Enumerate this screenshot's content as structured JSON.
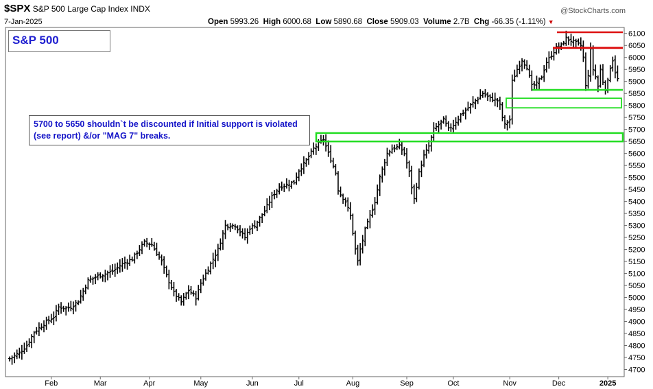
{
  "header": {
    "symbol": "$SPX",
    "name": "S&P 500 Large Cap Index",
    "exchange": "INDX",
    "brand": "@StockCharts.com",
    "date": "7-Jan-2025",
    "open_label": "Open",
    "open_value": "5993.26",
    "high_label": "High",
    "high_value": "6000.68",
    "low_label": "Low",
    "low_value": "5890.68",
    "close_label": "Close",
    "close_value": "5909.03",
    "volume_label": "Volume",
    "volume_value": "2.7B",
    "chg_label": "Chg",
    "chg_value": "-66.35 (-1.11%)"
  },
  "legend": {
    "label": "S&P 500"
  },
  "annotation": "5700 to 5650 shouldn`t be discounted if Initial support is violated (see report) &/or \"MAG 7\" breaks.",
  "colors": {
    "price_bars": "#000000",
    "support": "#22dd22",
    "resistance": "#dd1111",
    "text_blue": "#1414c8",
    "down_arrow": "#cc0000"
  },
  "chart_data": {
    "type": "ohlc",
    "title": "$SPX S&P 500 Large Cap Index INDX",
    "y_range": [
      4670,
      6125
    ],
    "y_ticks": [
      4700,
      4750,
      4800,
      4850,
      4900,
      4950,
      5000,
      5050,
      5100,
      5150,
      5200,
      5250,
      5300,
      5350,
      5400,
      5450,
      5500,
      5550,
      5600,
      5650,
      5700,
      5750,
      5800,
      5850,
      5900,
      5950,
      6000,
      6050,
      6100
    ],
    "x_labels": [
      {
        "label": "Feb",
        "day": 17
      },
      {
        "label": "Mar",
        "day": 37
      },
      {
        "label": "Apr",
        "day": 57
      },
      {
        "label": "May",
        "day": 78
      },
      {
        "label": "Jun",
        "day": 99
      },
      {
        "label": "Jul",
        "day": 118
      },
      {
        "label": "Aug",
        "day": 140
      },
      {
        "label": "Sep",
        "day": 162
      },
      {
        "label": "Oct",
        "day": 181
      },
      {
        "label": "Nov",
        "day": 204
      },
      {
        "label": "Dec",
        "day": 224
      },
      {
        "label": "2025",
        "day": 244
      }
    ],
    "x_span": [
      0,
      249
    ],
    "close_path": [
      [
        0,
        4745
      ],
      [
        4,
        4770
      ],
      [
        7,
        4800
      ],
      [
        10,
        4855
      ],
      [
        14,
        4890
      ],
      [
        18,
        4920
      ],
      [
        20,
        4960
      ],
      [
        23,
        4955
      ],
      [
        25,
        4960
      ],
      [
        28,
        4985
      ],
      [
        32,
        5070
      ],
      [
        36,
        5090
      ],
      [
        38,
        5095
      ],
      [
        42,
        5110
      ],
      [
        46,
        5140
      ],
      [
        50,
        5160
      ],
      [
        55,
        5230
      ],
      [
        58,
        5220
      ],
      [
        62,
        5150
      ],
      [
        64,
        5090
      ],
      [
        67,
        5020
      ],
      [
        70,
        4980
      ],
      [
        73,
        5030
      ],
      [
        76,
        5000
      ],
      [
        78,
        5060
      ],
      [
        82,
        5140
      ],
      [
        85,
        5200
      ],
      [
        88,
        5300
      ],
      [
        92,
        5300
      ],
      [
        96,
        5250
      ],
      [
        98,
        5290
      ],
      [
        100,
        5300
      ],
      [
        104,
        5360
      ],
      [
        107,
        5420
      ],
      [
        110,
        5460
      ],
      [
        113,
        5470
      ],
      [
        116,
        5480
      ],
      [
        118,
        5530
      ],
      [
        121,
        5570
      ],
      [
        124,
        5620
      ],
      [
        126,
        5640
      ],
      [
        128,
        5660
      ],
      [
        130,
        5600
      ],
      [
        131,
        5575
      ],
      [
        133,
        5520
      ],
      [
        134,
        5450
      ],
      [
        135,
        5430
      ],
      [
        137,
        5400
      ],
      [
        139,
        5340
      ],
      [
        141,
        5200
      ],
      [
        142,
        5150
      ],
      [
        143,
        5200
      ],
      [
        145,
        5280
      ],
      [
        147,
        5340
      ],
      [
        149,
        5400
      ],
      [
        151,
        5500
      ],
      [
        154,
        5600
      ],
      [
        156,
        5620
      ],
      [
        159,
        5630
      ],
      [
        161,
        5600
      ],
      [
        163,
        5520
      ],
      [
        164,
        5460
      ],
      [
        165,
        5410
      ],
      [
        167,
        5520
      ],
      [
        169,
        5590
      ],
      [
        171,
        5630
      ],
      [
        173,
        5700
      ],
      [
        175,
        5720
      ],
      [
        177,
        5740
      ],
      [
        179,
        5700
      ],
      [
        181,
        5720
      ],
      [
        184,
        5760
      ],
      [
        187,
        5790
      ],
      [
        190,
        5820
      ],
      [
        193,
        5850
      ],
      [
        196,
        5830
      ],
      [
        199,
        5820
      ],
      [
        200,
        5800
      ],
      [
        201,
        5750
      ],
      [
        202,
        5720
      ],
      [
        204,
        5740
      ],
      [
        205,
        5900
      ],
      [
        207,
        5950
      ],
      [
        209,
        5990
      ],
      [
        211,
        5960
      ],
      [
        213,
        5880
      ],
      [
        215,
        5890
      ],
      [
        217,
        5920
      ],
      [
        219,
        5980
      ],
      [
        221,
        6010
      ],
      [
        223,
        6040
      ],
      [
        225,
        6050
      ],
      [
        227,
        6080
      ],
      [
        229,
        6070
      ],
      [
        231,
        6060
      ],
      [
        233,
        6050
      ],
      [
        234,
        6000
      ],
      [
        235,
        5880
      ],
      [
        236,
        5930
      ],
      [
        237,
        6030
      ],
      [
        238,
        5950
      ],
      [
        239,
        5920
      ],
      [
        240,
        5880
      ],
      [
        241,
        5950
      ],
      [
        242,
        5900
      ],
      [
        243,
        5870
      ],
      [
        244,
        5900
      ],
      [
        245,
        5960
      ],
      [
        246,
        5990
      ],
      [
        247,
        5940
      ],
      [
        248,
        5909
      ]
    ],
    "support_zones": [
      {
        "low": 5650,
        "high": 5685
      },
      {
        "low": 5790,
        "high": 5830
      },
      {
        "level": 5865
      }
    ],
    "resistance_levels": [
      6040,
      6105
    ]
  }
}
